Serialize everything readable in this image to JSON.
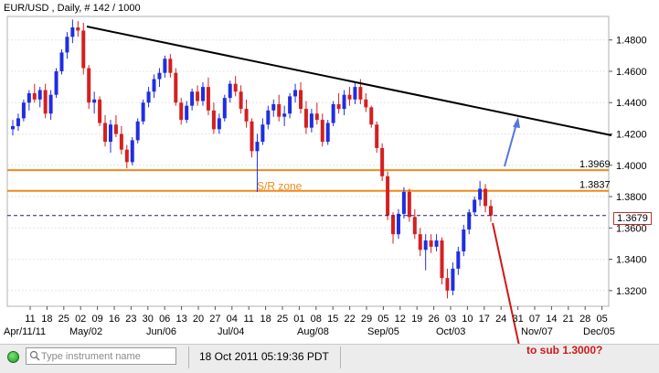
{
  "window": {
    "title": "EUR/USD , Daily, # 142 / 1000"
  },
  "chart": {
    "price_tag": "1.3679",
    "y_ticks": [
      "1.4800",
      "1.4600",
      "1.4400",
      "1.4200",
      "1.4000",
      "1.3800",
      "1.3600",
      "1.3400",
      "1.3200"
    ],
    "day_ticks": [
      "11",
      "18",
      "25",
      "02",
      "09",
      "16",
      "23",
      "30",
      "06",
      "13",
      "20",
      "27",
      "04",
      "11",
      "18",
      "25",
      "01",
      "08",
      "15",
      "22",
      "29",
      "05",
      "12",
      "19",
      "26",
      "03",
      "10",
      "17",
      "24",
      "31",
      "07",
      "14",
      "21",
      "28",
      "05"
    ],
    "month_labels": [
      "Apr/11/11",
      "May/02",
      "Jun/06",
      "Jul/04",
      "Aug/08",
      "Sep/05",
      "Oct/03",
      "Nov/07",
      "Dec/05"
    ],
    "support_upper_label": "1.3969",
    "support_lower_label": "1.3837",
    "zone_label": "S/R zone",
    "annotation": "to sub 1.3000?",
    "colors": {
      "bull": "#1f2ee0",
      "bear": "#d42020",
      "zone_lines": "#f08a1c",
      "trendline": "#000000",
      "projection_up": "#5577dd",
      "projection_down": "#d01818"
    }
  },
  "chart_data": {
    "type": "candlestick",
    "title": "EUR/USD , Daily, # 142 / 1000",
    "ylim": [
      1.31,
      1.495
    ],
    "levels": [
      1.3969,
      1.3837
    ],
    "current": 1.3679,
    "trendline": [
      [
        "2011-05-04",
        1.493
      ],
      [
        "2011-12-05",
        1.422
      ]
    ],
    "candles": [
      [
        1.423,
        1.429,
        1.419,
        1.425
      ],
      [
        1.425,
        1.433,
        1.422,
        1.43
      ],
      [
        1.43,
        1.442,
        1.428,
        1.44
      ],
      [
        1.44,
        1.448,
        1.435,
        1.446
      ],
      [
        1.446,
        1.452,
        1.44,
        1.442
      ],
      [
        1.442,
        1.45,
        1.437,
        1.448
      ],
      [
        1.448,
        1.452,
        1.43,
        1.433
      ],
      [
        1.433,
        1.448,
        1.429,
        1.445
      ],
      [
        1.445,
        1.462,
        1.443,
        1.46
      ],
      [
        1.46,
        1.474,
        1.458,
        1.472
      ],
      [
        1.472,
        1.485,
        1.468,
        1.482
      ],
      [
        1.482,
        1.493,
        1.478,
        1.488
      ],
      [
        1.488,
        1.492,
        1.482,
        1.486
      ],
      [
        1.486,
        1.491,
        1.458,
        1.462
      ],
      [
        1.462,
        1.464,
        1.436,
        1.44
      ],
      [
        1.44,
        1.447,
        1.433,
        1.442
      ],
      [
        1.442,
        1.444,
        1.425,
        1.427
      ],
      [
        1.427,
        1.432,
        1.412,
        1.415
      ],
      [
        1.415,
        1.429,
        1.408,
        1.426
      ],
      [
        1.426,
        1.432,
        1.418,
        1.42
      ],
      [
        1.42,
        1.425,
        1.407,
        1.41
      ],
      [
        1.41,
        1.413,
        1.398,
        1.402
      ],
      [
        1.402,
        1.418,
        1.4,
        1.416
      ],
      [
        1.416,
        1.43,
        1.414,
        1.428
      ],
      [
        1.428,
        1.442,
        1.426,
        1.44
      ],
      [
        1.44,
        1.45,
        1.437,
        1.447
      ],
      [
        1.447,
        1.458,
        1.443,
        1.455
      ],
      [
        1.455,
        1.462,
        1.45,
        1.459
      ],
      [
        1.459,
        1.47,
        1.456,
        1.468
      ],
      [
        1.468,
        1.471,
        1.456,
        1.459
      ],
      [
        1.459,
        1.462,
        1.438,
        1.44
      ],
      [
        1.44,
        1.443,
        1.426,
        1.429
      ],
      [
        1.429,
        1.441,
        1.427,
        1.438
      ],
      [
        1.438,
        1.449,
        1.435,
        1.447
      ],
      [
        1.447,
        1.451,
        1.438,
        1.441
      ],
      [
        1.441,
        1.453,
        1.438,
        1.45
      ],
      [
        1.45,
        1.456,
        1.432,
        1.435
      ],
      [
        1.435,
        1.44,
        1.42,
        1.423
      ],
      [
        1.423,
        1.433,
        1.42,
        1.43
      ],
      [
        1.43,
        1.445,
        1.428,
        1.443
      ],
      [
        1.443,
        1.454,
        1.44,
        1.452
      ],
      [
        1.452,
        1.457,
        1.444,
        1.447
      ],
      [
        1.447,
        1.451,
        1.433,
        1.436
      ],
      [
        1.436,
        1.442,
        1.424,
        1.428
      ],
      [
        1.428,
        1.43,
        1.405,
        1.409
      ],
      [
        1.409,
        1.42,
        1.383,
        1.415
      ],
      [
        1.415,
        1.43,
        1.413,
        1.426
      ],
      [
        1.426,
        1.438,
        1.423,
        1.435
      ],
      [
        1.435,
        1.442,
        1.431,
        1.439
      ],
      [
        1.439,
        1.445,
        1.428,
        1.431
      ],
      [
        1.431,
        1.438,
        1.425,
        1.433
      ],
      [
        1.433,
        1.446,
        1.43,
        1.444
      ],
      [
        1.444,
        1.452,
        1.44,
        1.448
      ],
      [
        1.448,
        1.453,
        1.433,
        1.436
      ],
      [
        1.436,
        1.441,
        1.42,
        1.424
      ],
      [
        1.424,
        1.436,
        1.421,
        1.433
      ],
      [
        1.433,
        1.44,
        1.426,
        1.429
      ],
      [
        1.429,
        1.433,
        1.412,
        1.415
      ],
      [
        1.415,
        1.429,
        1.413,
        1.427
      ],
      [
        1.427,
        1.441,
        1.425,
        1.439
      ],
      [
        1.439,
        1.446,
        1.433,
        1.436
      ],
      [
        1.436,
        1.448,
        1.432,
        1.445
      ],
      [
        1.445,
        1.45,
        1.438,
        1.442
      ],
      [
        1.442,
        1.453,
        1.439,
        1.45
      ],
      [
        1.45,
        1.455,
        1.439,
        1.442
      ],
      [
        1.442,
        1.446,
        1.434,
        1.437
      ],
      [
        1.437,
        1.438,
        1.424,
        1.426
      ],
      [
        1.426,
        1.428,
        1.408,
        1.411
      ],
      [
        1.411,
        1.414,
        1.39,
        1.393
      ],
      [
        1.393,
        1.396,
        1.365,
        1.368
      ],
      [
        1.368,
        1.37,
        1.35,
        1.356
      ],
      [
        1.356,
        1.372,
        1.353,
        1.369
      ],
      [
        1.369,
        1.386,
        1.366,
        1.383
      ],
      [
        1.383,
        1.385,
        1.364,
        1.367
      ],
      [
        1.367,
        1.372,
        1.353,
        1.356
      ],
      [
        1.356,
        1.36,
        1.342,
        1.346
      ],
      [
        1.346,
        1.356,
        1.333,
        1.352
      ],
      [
        1.352,
        1.356,
        1.344,
        1.348
      ],
      [
        1.348,
        1.356,
        1.345,
        1.352
      ],
      [
        1.352,
        1.354,
        1.324,
        1.328
      ],
      [
        1.328,
        1.334,
        1.315,
        1.32
      ],
      [
        1.32,
        1.338,
        1.317,
        1.334
      ],
      [
        1.334,
        1.348,
        1.33,
        1.345
      ],
      [
        1.345,
        1.362,
        1.342,
        1.359
      ],
      [
        1.359,
        1.372,
        1.356,
        1.37
      ],
      [
        1.37,
        1.38,
        1.368,
        1.378
      ],
      [
        1.378,
        1.39,
        1.374,
        1.385
      ],
      [
        1.385,
        1.388,
        1.37,
        1.374
      ],
      [
        1.374,
        1.378,
        1.364,
        1.3679
      ]
    ]
  }
}
